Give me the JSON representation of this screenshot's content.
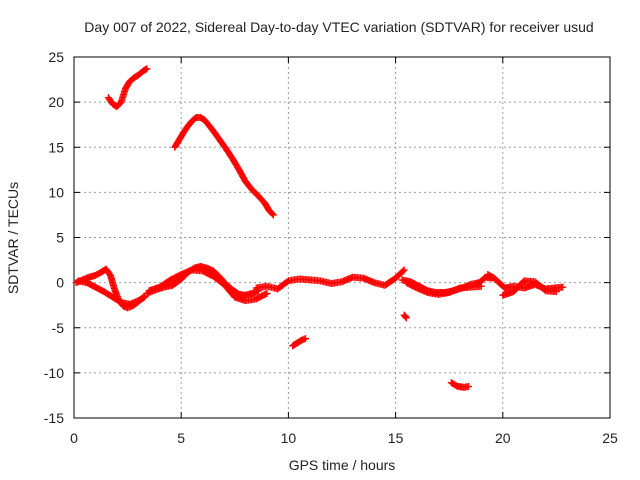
{
  "chart_data": {
    "type": "scatter",
    "title": "Day 007 of 2022, Sidereal Day-to-day VTEC variation (SDTVAR) for receiver usud",
    "xlabel": "GPS time / hours",
    "ylabel": "SDTVAR / TECUs",
    "xlim": [
      0,
      25
    ],
    "ylim": [
      -15,
      25
    ],
    "xticks": [
      0,
      5,
      10,
      15,
      20,
      25
    ],
    "yticks": [
      -15,
      -10,
      -5,
      0,
      5,
      10,
      15,
      20,
      25
    ],
    "grid": true,
    "marker": "+",
    "color": "#ff0000",
    "series": [
      {
        "name": "arc-upper-left",
        "x": [
          1.6,
          1.8,
          2.0,
          2.2,
          2.4,
          2.6,
          2.8,
          3.0,
          3.2,
          3.4
        ],
        "y": [
          20.5,
          19.8,
          19.5,
          20.0,
          21.5,
          22.3,
          22.7,
          23.0,
          23.4,
          23.7
        ]
      },
      {
        "name": "arc-upper-mid",
        "x": [
          4.7,
          4.9,
          5.1,
          5.3,
          5.5,
          5.7,
          5.9,
          6.1,
          6.3,
          6.5,
          6.8,
          7.1,
          7.4,
          7.7,
          8.0,
          8.3,
          8.6,
          8.9,
          9.1,
          9.3
        ],
        "y": [
          15.0,
          15.8,
          16.6,
          17.3,
          17.9,
          18.3,
          18.3,
          18.0,
          17.4,
          16.8,
          15.8,
          14.8,
          13.7,
          12.5,
          11.2,
          10.3,
          9.6,
          8.8,
          8.0,
          7.5
        ]
      },
      {
        "name": "cluster-a",
        "x": [
          0.1,
          0.4,
          0.7,
          1.0,
          1.3,
          1.5,
          1.7,
          1.9,
          2.1,
          2.3,
          2.5,
          2.7,
          2.9,
          3.1,
          3.3
        ],
        "y": [
          0.0,
          0.3,
          0.6,
          0.8,
          1.2,
          1.5,
          0.8,
          -0.8,
          -2.0,
          -2.6,
          -2.8,
          -2.6,
          -2.3,
          -1.9,
          -1.5
        ]
      },
      {
        "name": "cluster-a2",
        "x": [
          0.2,
          0.6,
          1.0,
          1.4,
          1.8,
          2.2,
          2.6,
          3.0,
          3.3
        ],
        "y": [
          0.2,
          0.0,
          -0.5,
          -1.0,
          -1.6,
          -2.2,
          -2.4,
          -2.0,
          -1.6
        ]
      },
      {
        "name": "cluster-b",
        "x": [
          3.4,
          3.8,
          4.2,
          4.6,
          5.0,
          5.3,
          5.6,
          5.9,
          6.2,
          6.5,
          6.8,
          7.1,
          7.4,
          7.7,
          8.0,
          8.3,
          8.6
        ],
        "y": [
          -1.2,
          -0.8,
          -0.5,
          -0.3,
          0.4,
          1.1,
          1.6,
          1.8,
          1.6,
          1.3,
          0.6,
          -0.2,
          -0.8,
          -1.3,
          -1.4,
          -1.2,
          -0.9
        ]
      },
      {
        "name": "cluster-b2",
        "x": [
          3.5,
          4.0,
          4.5,
          5.0,
          5.5,
          6.0,
          6.5,
          7.0,
          7.5,
          8.0,
          8.5,
          9.0
        ],
        "y": [
          -0.9,
          -0.5,
          0.3,
          0.9,
          1.4,
          1.3,
          0.7,
          -0.2,
          -1.6,
          -2.0,
          -1.8,
          -1.2
        ]
      },
      {
        "name": "cluster-c",
        "x": [
          8.5,
          9.0,
          9.5,
          10.0,
          10.5,
          11.0,
          11.5,
          12.0,
          12.5,
          13.0,
          13.5,
          14.0,
          14.5,
          15.0,
          15.4
        ],
        "y": [
          -0.6,
          -0.4,
          -0.7,
          0.2,
          0.4,
          0.3,
          0.2,
          -0.1,
          0.1,
          0.6,
          0.5,
          0.0,
          -0.3,
          0.5,
          1.4
        ]
      },
      {
        "name": "cluster-d",
        "x": [
          15.3,
          15.7,
          16.1,
          16.5,
          16.9,
          17.3,
          17.7,
          18.1,
          18.5,
          18.9,
          19.2,
          19.5
        ],
        "y": [
          0.3,
          0.1,
          -0.4,
          -0.9,
          -1.1,
          -1.1,
          -0.9,
          -0.6,
          -0.2,
          0.0,
          0.6,
          0.5
        ]
      },
      {
        "name": "cluster-d2",
        "x": [
          15.5,
          16.0,
          16.5,
          17.0,
          17.5,
          18.0,
          18.5,
          19.0
        ],
        "y": [
          0.0,
          -0.6,
          -1.1,
          -1.3,
          -1.1,
          -0.6,
          -0.5,
          -0.4
        ]
      },
      {
        "name": "cluster-e",
        "x": [
          19.3,
          19.6,
          20.1,
          20.5,
          21.0,
          21.5,
          22.0,
          22.4,
          22.8
        ],
        "y": [
          0.9,
          0.5,
          -0.6,
          -0.4,
          -0.6,
          -0.2,
          -0.7,
          -0.6,
          -0.5
        ]
      },
      {
        "name": "cluster-e2",
        "x": [
          20.0,
          20.5,
          21.0,
          21.5,
          22.0,
          22.5
        ],
        "y": [
          -1.4,
          -1.0,
          0.2,
          0.1,
          -0.9,
          -1.0
        ]
      },
      {
        "name": "fragment-1",
        "x": [
          15.4,
          15.5
        ],
        "y": [
          -3.6,
          -3.9
        ]
      },
      {
        "name": "fragment-2",
        "x": [
          10.2,
          10.4,
          10.6,
          10.8
        ],
        "y": [
          -7.0,
          -6.7,
          -6.4,
          -6.2
        ]
      },
      {
        "name": "fragment-3",
        "x": [
          17.6,
          17.9,
          18.2,
          18.4
        ],
        "y": [
          -11.1,
          -11.5,
          -11.6,
          -11.5
        ]
      }
    ]
  }
}
